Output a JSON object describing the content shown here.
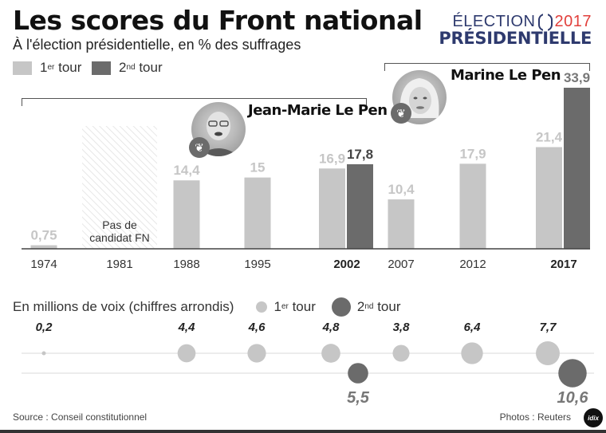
{
  "header": {
    "title": "Les scores du Front national",
    "subtitle": "À l'élection présidentielle, en % des suffrages",
    "logo_line1_word": "ÉLECTION",
    "logo_line1_year": "2017",
    "logo_line2": "PRÉSIDENTIELLE"
  },
  "legend": {
    "round1_num": "1",
    "round1_sup": "er",
    "round1_word": "tour",
    "round2_num": "2",
    "round2_sup": "nd",
    "round2_word": "tour"
  },
  "candidates": {
    "jean_marie": "Jean-Marie Le Pen",
    "marine": "Marine Le Pen"
  },
  "no_candidate_note_line1": "Pas de",
  "no_candidate_note_line2": "candidat FN",
  "colors": {
    "round1": "#c6c6c6",
    "round2": "#6b6b6b",
    "hatch": "#e2e2e2",
    "logo_blue": "#2e3a6e",
    "logo_red": "#e2403c"
  },
  "chart_data": [
    {
      "type": "bar",
      "title": "Les scores du Front national",
      "subtitle": "À l'élection présidentielle, en % des suffrages",
      "xlabel": "",
      "ylabel": "% des suffrages",
      "ylim": [
        0,
        35
      ],
      "grid": false,
      "legend": "top-left",
      "categories": [
        "1974",
        "1981",
        "1988",
        "1995",
        "2002",
        "2007",
        "2012",
        "2017"
      ],
      "bold_categories": [
        "2002",
        "2017"
      ],
      "series": [
        {
          "name": "1er tour",
          "values": [
            0.75,
            null,
            14.4,
            15,
            16.9,
            10.4,
            17.9,
            21.4
          ],
          "labels": [
            "0,75",
            "",
            "14,4",
            "15",
            "16,9",
            "10,4",
            "17,9",
            "21,4"
          ]
        },
        {
          "name": "2nd tour",
          "values": [
            null,
            null,
            null,
            null,
            17.8,
            null,
            null,
            33.9
          ],
          "labels": [
            "",
            "",
            "",
            "",
            "17,8",
            "",
            "",
            "33,9"
          ]
        }
      ],
      "annotations": [
        "Pas de candidat FN",
        "Jean-Marie Le Pen",
        "Marine Le Pen"
      ]
    },
    {
      "type": "scatter",
      "title": "En millions de voix (chiffres arrondis)",
      "categories": [
        "1974",
        "1981",
        "1988",
        "1995",
        "2002",
        "2007",
        "2012",
        "2017"
      ],
      "series": [
        {
          "name": "1er tour",
          "values": [
            0.2,
            null,
            4.4,
            4.6,
            4.8,
            3.8,
            6.4,
            7.7
          ],
          "labels": [
            "0,2",
            "",
            "4,4",
            "4,6",
            "4,8",
            "3,8",
            "6,4",
            "7,7"
          ]
        },
        {
          "name": "2nd tour",
          "values": [
            null,
            null,
            null,
            null,
            5.5,
            null,
            null,
            10.6
          ],
          "labels": [
            "",
            "",
            "",
            "",
            "5,5",
            "",
            "",
            "10,6"
          ]
        }
      ],
      "legend": "top"
    }
  ],
  "bubbles": {
    "heading": "En millions de voix (chiffres arrondis)"
  },
  "footer": {
    "source": "Source : Conseil constitutionnel",
    "photos": "Photos : Reuters",
    "brand": "IDIX"
  }
}
